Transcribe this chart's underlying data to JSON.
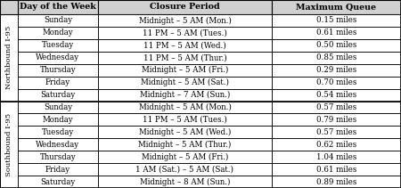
{
  "title_row": [
    "Day of the Week",
    "Closure Period",
    "Maximum Queue"
  ],
  "northbound_label": "Northbound I-95",
  "southbound_label": "Southbound I-95",
  "northbound_rows": [
    [
      "Sunday",
      "Midnight – 5 AM (Mon.)",
      "0.15 miles"
    ],
    [
      "Monday",
      "11 PM – 5 AM (Tues.)",
      "0.61 miles"
    ],
    [
      "Tuesday",
      "11 PM – 5 AM (Wed.)",
      "0.50 miles"
    ],
    [
      "Wednesday",
      "11 PM – 5 AM (Thur.)",
      "0.85 miles"
    ],
    [
      "Thursday",
      "Midnight – 5 AM (Fri.)",
      "0.29 miles"
    ],
    [
      "Friday",
      "Midnight – 5 AM (Sat.)",
      "0.70 miles"
    ],
    [
      "Saturday",
      "Midnight – 7 AM (Sun.)",
      "0.54 miles"
    ]
  ],
  "southbound_rows": [
    [
      "Sunday",
      "Midnight – 5 AM (Mon.)",
      "0.57 miles"
    ],
    [
      "Monday",
      "11 PM – 5 AM (Tues.)",
      "0.79 miles"
    ],
    [
      "Tuesday",
      "Midnight – 5 AM (Wed.)",
      "0.57 miles"
    ],
    [
      "Wednesday",
      "Midnight – 5 AM (Thur.)",
      "0.62 miles"
    ],
    [
      "Thursday",
      "Midnight – 5 AM (Fri.)",
      "1.04 miles"
    ],
    [
      "Friday",
      "1 AM (Sat.) – 5 AM (Sat.)",
      "0.61 miles"
    ],
    [
      "Saturday",
      "Midnight – 8 AM (Sun.)",
      "0.89 miles"
    ]
  ],
  "header_bg": "#d0d0d0",
  "cell_bg": "#ffffff",
  "border_color": "#000000",
  "header_font_size": 6.8,
  "cell_font_size": 6.2,
  "side_label_font_size": 6.0,
  "figw": 4.5,
  "figh": 2.11,
  "dpi": 100
}
